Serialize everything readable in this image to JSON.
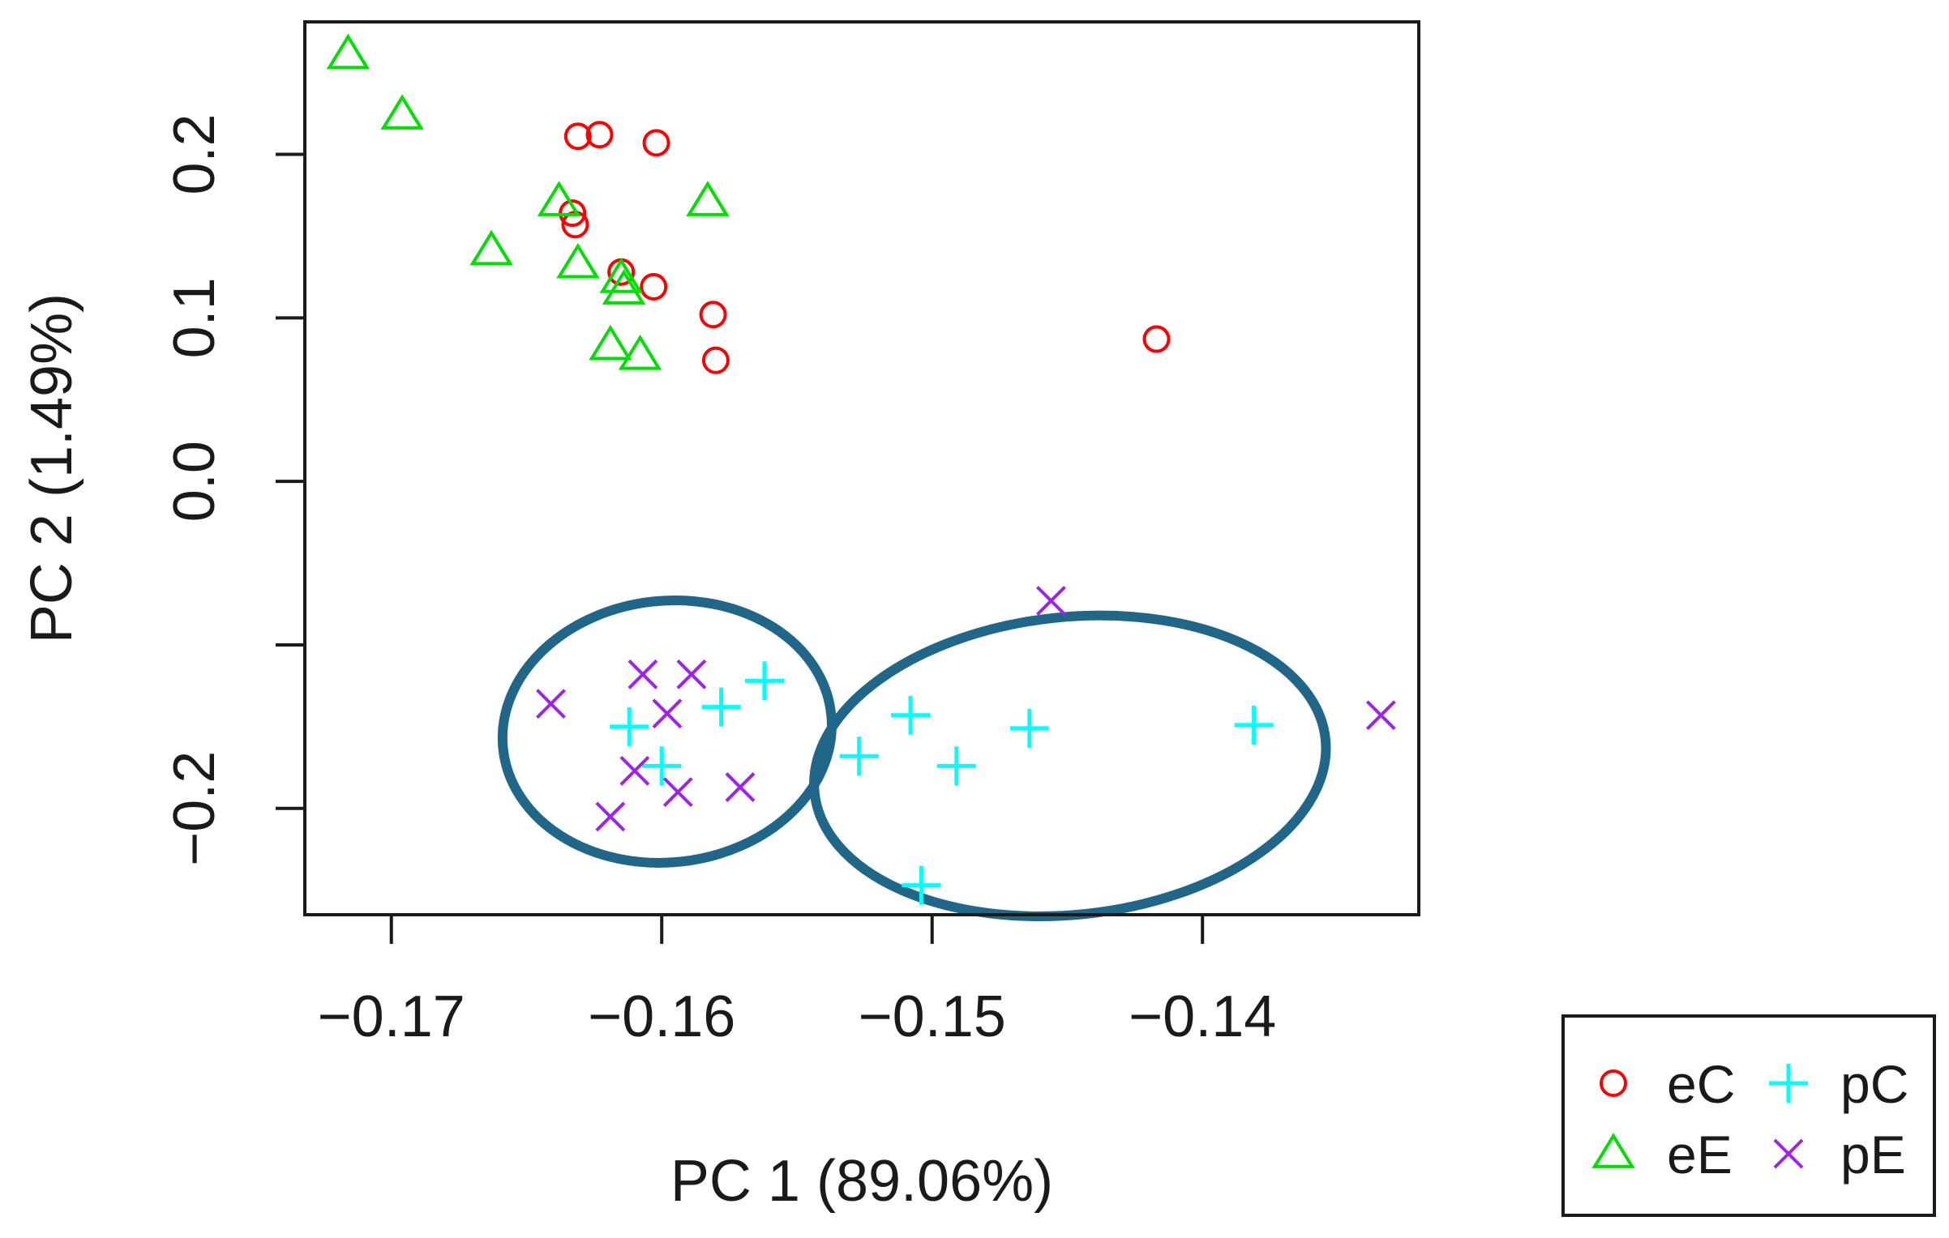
{
  "chart_data": {
    "type": "scatter",
    "title": "",
    "xlabel": "PC 1 (89.06%)",
    "ylabel": "PC 2 (1.49%)",
    "xlim": [
      -0.1732,
      -0.132
    ],
    "ylim": [
      -0.265,
      0.281
    ],
    "xticks": [
      {
        "value": -0.17,
        "label": "−0.17"
      },
      {
        "value": -0.16,
        "label": "−0.16"
      },
      {
        "value": -0.15,
        "label": "−0.15"
      },
      {
        "value": -0.14,
        "label": "−0.14"
      }
    ],
    "yticks": [
      {
        "value": 0.2,
        "label": "0.2"
      },
      {
        "value": 0.1,
        "label": "0.1"
      },
      {
        "value": 0.0,
        "label": "0.0"
      },
      {
        "value": -0.1,
        "label": ""
      },
      {
        "value": -0.2,
        "label": "−0.2"
      }
    ],
    "grid": false,
    "legend_position": "bottom-right outside",
    "series": [
      {
        "name": "eC",
        "marker": "circle",
        "color": "#ff0000",
        "x": [
          -0.1631,
          -0.1623,
          -0.1602,
          -0.1633,
          -0.1632,
          -0.1615,
          -0.1603,
          -0.1581,
          -0.158,
          -0.1417
        ],
        "y": [
          0.211,
          0.212,
          0.207,
          0.164,
          0.157,
          0.128,
          0.119,
          0.102,
          0.074,
          0.087
        ]
      },
      {
        "name": "eE",
        "marker": "triangle",
        "color": "#00e000",
        "x": [
          -0.1716,
          -0.1696,
          -0.1663,
          -0.1638,
          -0.1631,
          -0.1615,
          -0.1614,
          -0.1619,
          -0.1608,
          -0.1583
        ],
        "y": [
          0.261,
          0.224,
          0.141,
          0.171,
          0.133,
          0.124,
          0.117,
          0.083,
          0.077,
          0.171
        ]
      },
      {
        "name": "pC",
        "marker": "plus",
        "color": "#00ffff",
        "x": [
          -0.1562,
          -0.1578,
          -0.1612,
          -0.16,
          -0.1527,
          -0.1508,
          -0.1491,
          -0.1464,
          -0.1504,
          -0.1381
        ],
        "y": [
          -0.122,
          -0.138,
          -0.15,
          -0.174,
          -0.168,
          -0.143,
          -0.174,
          -0.151,
          -0.247,
          -0.149
        ]
      },
      {
        "name": "pE",
        "marker": "x",
        "color": "#a020f0",
        "x": [
          -0.1641,
          -0.1607,
          -0.1589,
          -0.1598,
          -0.161,
          -0.1594,
          -0.1571,
          -0.1619,
          -0.1456,
          -0.1334
        ],
        "y": [
          -0.136,
          -0.118,
          -0.118,
          -0.142,
          -0.177,
          -0.19,
          -0.187,
          -0.205,
          -0.073,
          -0.143
        ]
      }
    ],
    "annotations": [
      {
        "type": "ellipse",
        "color": "#1f6689",
        "center": [
          -0.1598,
          -0.153
        ],
        "radius": [
          0.0061,
          0.08
        ],
        "description": "left cluster outline"
      },
      {
        "type": "ellipse",
        "color": "#1f6689",
        "center": [
          -0.1449,
          -0.174
        ],
        "radius": [
          0.0095,
          0.091
        ],
        "description": "right cluster outline"
      }
    ],
    "legend": [
      {
        "label": "eC",
        "marker": "circle",
        "color": "#ff0000"
      },
      {
        "label": "pC",
        "marker": "plus",
        "color": "#00ffff"
      },
      {
        "label": "eE",
        "marker": "triangle",
        "color": "#00e000"
      },
      {
        "label": "pE",
        "marker": "x",
        "color": "#a020f0"
      }
    ]
  }
}
